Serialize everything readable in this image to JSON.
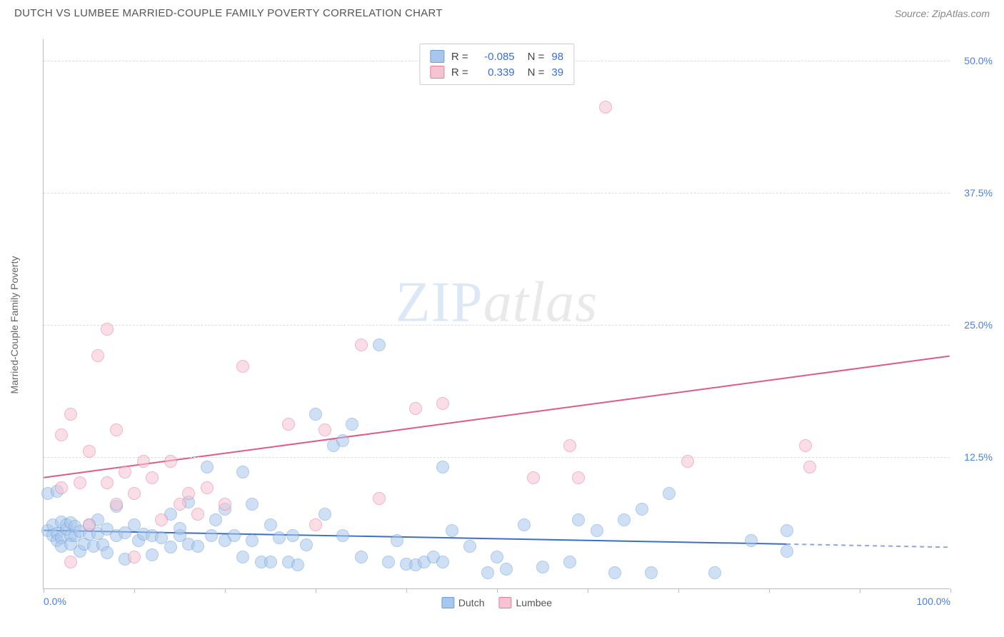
{
  "header": {
    "title": "DUTCH VS LUMBEE MARRIED-COUPLE FAMILY POVERTY CORRELATION CHART",
    "source": "Source: ZipAtlas.com"
  },
  "watermark": {
    "zip": "ZIP",
    "atlas": "atlas"
  },
  "chart": {
    "type": "scatter",
    "y_label": "Married-Couple Family Poverty",
    "xlim": [
      0,
      100
    ],
    "ylim": [
      0,
      52
    ],
    "x_ticks": [
      0,
      10,
      20,
      30,
      40,
      50,
      60,
      70,
      80,
      90,
      100
    ],
    "x_tick_labels": {
      "0": "0.0%",
      "100": "100.0%"
    },
    "y_ticks": [
      12.5,
      25.0,
      37.5,
      50.0
    ],
    "y_tick_labels": [
      "12.5%",
      "25.0%",
      "37.5%",
      "50.0%"
    ],
    "y_tick_color": "#4a7fd6",
    "x_tick_color": "#4a7fd6",
    "background_color": "#ffffff",
    "grid_color": "#dddddd",
    "axis_color": "#bbbbbb",
    "series": [
      {
        "name": "Dutch",
        "fill_color": "#a9c7ec",
        "stroke_color": "#6f9fd8",
        "fill_opacity": 0.55,
        "marker_radius": 9,
        "r_value": "-0.085",
        "n_value": "98",
        "trend": {
          "x1": 0,
          "y1": 5.5,
          "x2": 82,
          "y2": 4.2,
          "x2_dash": 100,
          "y2_dash": 3.9,
          "color": "#3b6fc9",
          "width": 2
        },
        "points": [
          [
            0.5,
            9.0
          ],
          [
            0.5,
            5.5
          ],
          [
            1.0,
            6.0
          ],
          [
            1.0,
            5.0
          ],
          [
            1.5,
            5.2
          ],
          [
            1.5,
            4.5
          ],
          [
            1.5,
            9.2
          ],
          [
            2.0,
            6.3
          ],
          [
            2.0,
            4.8
          ],
          [
            2.0,
            4.0
          ],
          [
            2.5,
            5.6
          ],
          [
            2.5,
            6.0
          ],
          [
            3.0,
            5.0
          ],
          [
            3.0,
            6.2
          ],
          [
            3.0,
            4.2
          ],
          [
            3.5,
            5.0
          ],
          [
            3.5,
            5.9
          ],
          [
            4.0,
            5.4
          ],
          [
            4.0,
            3.5
          ],
          [
            4.5,
            4.2
          ],
          [
            5.0,
            5.1
          ],
          [
            5.0,
            6.0
          ],
          [
            5.5,
            4.0
          ],
          [
            6.0,
            6.5
          ],
          [
            6.0,
            5.2
          ],
          [
            6.5,
            4.1
          ],
          [
            7.0,
            5.6
          ],
          [
            7.0,
            3.4
          ],
          [
            8.0,
            5.0
          ],
          [
            8.0,
            7.8
          ],
          [
            9.0,
            5.3
          ],
          [
            9.0,
            2.8
          ],
          [
            10.0,
            6.0
          ],
          [
            10.5,
            4.5
          ],
          [
            11.0,
            5.1
          ],
          [
            12.0,
            5.0
          ],
          [
            12.0,
            3.2
          ],
          [
            13.0,
            4.8
          ],
          [
            14.0,
            7.0
          ],
          [
            14.0,
            3.9
          ],
          [
            15.0,
            5.0
          ],
          [
            15.0,
            5.7
          ],
          [
            16.0,
            4.2
          ],
          [
            16.0,
            8.2
          ],
          [
            17.0,
            4.0
          ],
          [
            18.0,
            11.5
          ],
          [
            18.5,
            5.0
          ],
          [
            19.0,
            6.5
          ],
          [
            20.0,
            4.5
          ],
          [
            20.0,
            7.5
          ],
          [
            21.0,
            5.0
          ],
          [
            22.0,
            11.0
          ],
          [
            22.0,
            3.0
          ],
          [
            23.0,
            4.5
          ],
          [
            23.0,
            8.0
          ],
          [
            24.0,
            2.5
          ],
          [
            25.0,
            6.0
          ],
          [
            25.0,
            2.5
          ],
          [
            26.0,
            4.8
          ],
          [
            27.0,
            2.5
          ],
          [
            27.5,
            5.0
          ],
          [
            28.0,
            2.2
          ],
          [
            29.0,
            4.1
          ],
          [
            30.0,
            16.5
          ],
          [
            31.0,
            7.0
          ],
          [
            32.0,
            13.5
          ],
          [
            33.0,
            5.0
          ],
          [
            33.0,
            14.0
          ],
          [
            34.0,
            15.5
          ],
          [
            35.0,
            3.0
          ],
          [
            37.0,
            23.0
          ],
          [
            38.0,
            2.5
          ],
          [
            39.0,
            4.5
          ],
          [
            40.0,
            2.3
          ],
          [
            41.0,
            2.2
          ],
          [
            42.0,
            2.5
          ],
          [
            43.0,
            3.0
          ],
          [
            44.0,
            2.5
          ],
          [
            44.0,
            11.5
          ],
          [
            45.0,
            5.5
          ],
          [
            47.0,
            4.0
          ],
          [
            49.0,
            1.5
          ],
          [
            50.0,
            3.0
          ],
          [
            51.0,
            1.8
          ],
          [
            53.0,
            6.0
          ],
          [
            55.0,
            2.0
          ],
          [
            58.0,
            2.5
          ],
          [
            59.0,
            6.5
          ],
          [
            61.0,
            5.5
          ],
          [
            63.0,
            1.5
          ],
          [
            64.0,
            6.5
          ],
          [
            66.0,
            7.5
          ],
          [
            67.0,
            1.5
          ],
          [
            69.0,
            9.0
          ],
          [
            74.0,
            1.5
          ],
          [
            78.0,
            4.5
          ],
          [
            82.0,
            3.5
          ],
          [
            82.0,
            5.5
          ]
        ]
      },
      {
        "name": "Lumbee",
        "fill_color": "#f5c4d2",
        "stroke_color": "#e77b9e",
        "fill_opacity": 0.55,
        "marker_radius": 9,
        "r_value": "0.339",
        "n_value": "39",
        "trend": {
          "x1": 0,
          "y1": 10.5,
          "x2": 100,
          "y2": 22.0,
          "color": "#e05a85",
          "width": 2
        },
        "points": [
          [
            2.0,
            9.5
          ],
          [
            2.0,
            14.5
          ],
          [
            3.0,
            16.5
          ],
          [
            3.0,
            2.5
          ],
          [
            4.0,
            10.0
          ],
          [
            5.0,
            13.0
          ],
          [
            5.0,
            6.0
          ],
          [
            6.0,
            22.0
          ],
          [
            7.0,
            24.5
          ],
          [
            7.0,
            10.0
          ],
          [
            8.0,
            8.0
          ],
          [
            8.0,
            15.0
          ],
          [
            9.0,
            11.0
          ],
          [
            10.0,
            3.0
          ],
          [
            10.0,
            9.0
          ],
          [
            11.0,
            12.0
          ],
          [
            12.0,
            10.5
          ],
          [
            13.0,
            6.5
          ],
          [
            14.0,
            12.0
          ],
          [
            15.0,
            8.0
          ],
          [
            16.0,
            9.0
          ],
          [
            17.0,
            7.0
          ],
          [
            18.0,
            9.5
          ],
          [
            20.0,
            8.0
          ],
          [
            22.0,
            21.0
          ],
          [
            27.0,
            15.5
          ],
          [
            30.0,
            6.0
          ],
          [
            31.0,
            15.0
          ],
          [
            35.0,
            23.0
          ],
          [
            37.0,
            8.5
          ],
          [
            41.0,
            17.0
          ],
          [
            44.0,
            17.5
          ],
          [
            54.0,
            10.5
          ],
          [
            58.0,
            13.5
          ],
          [
            59.0,
            10.5
          ],
          [
            62.0,
            45.5
          ],
          [
            71.0,
            12.0
          ],
          [
            84.0,
            13.5
          ],
          [
            84.5,
            11.5
          ]
        ]
      }
    ],
    "top_legend": {
      "rows": [
        {
          "swatch_fill": "#a9c7ec",
          "swatch_stroke": "#6f9fd8",
          "r": "-0.085",
          "n": "98",
          "val_color": "#3b6fc9"
        },
        {
          "swatch_fill": "#f5c4d2",
          "swatch_stroke": "#e77b9e",
          "r": "0.339",
          "n": "39",
          "val_color": "#3b6fc9"
        }
      ]
    },
    "bottom_legend": [
      {
        "label": "Dutch",
        "fill": "#a9c7ec",
        "stroke": "#6f9fd8"
      },
      {
        "label": "Lumbee",
        "fill": "#f5c4d2",
        "stroke": "#e77b9e"
      }
    ]
  }
}
